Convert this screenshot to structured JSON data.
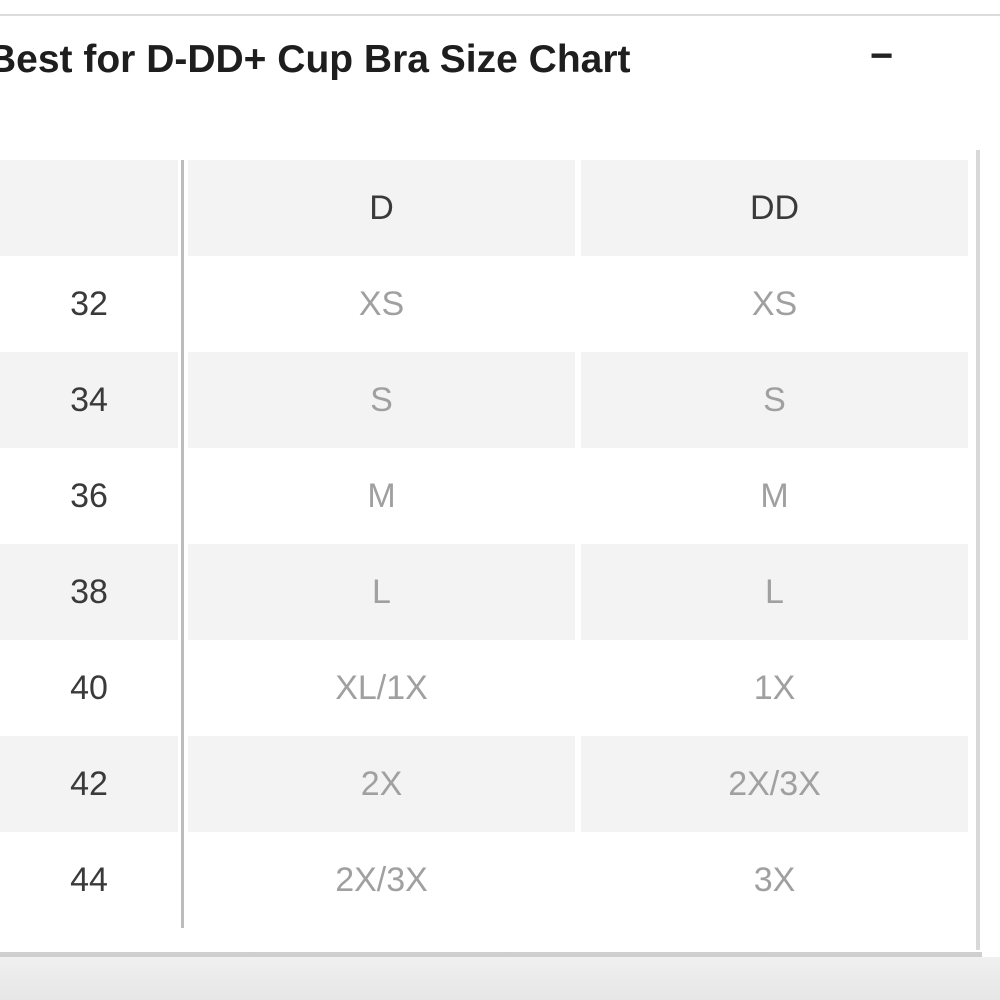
{
  "header": {
    "title": "Best for D-DD+ Cup Bra Size Chart",
    "toggle": "−"
  },
  "table": {
    "columns": [
      "D",
      "DD"
    ],
    "rows": [
      [
        "32",
        "XS",
        "XS"
      ],
      [
        "34",
        "S",
        "S"
      ],
      [
        "36",
        "M",
        "M"
      ],
      [
        "38",
        "L",
        "L"
      ],
      [
        "40",
        "XL/1X",
        "1X"
      ],
      [
        "42",
        "2X",
        "2X/3X"
      ],
      [
        "44",
        "2X/3X",
        "3X"
      ]
    ]
  }
}
